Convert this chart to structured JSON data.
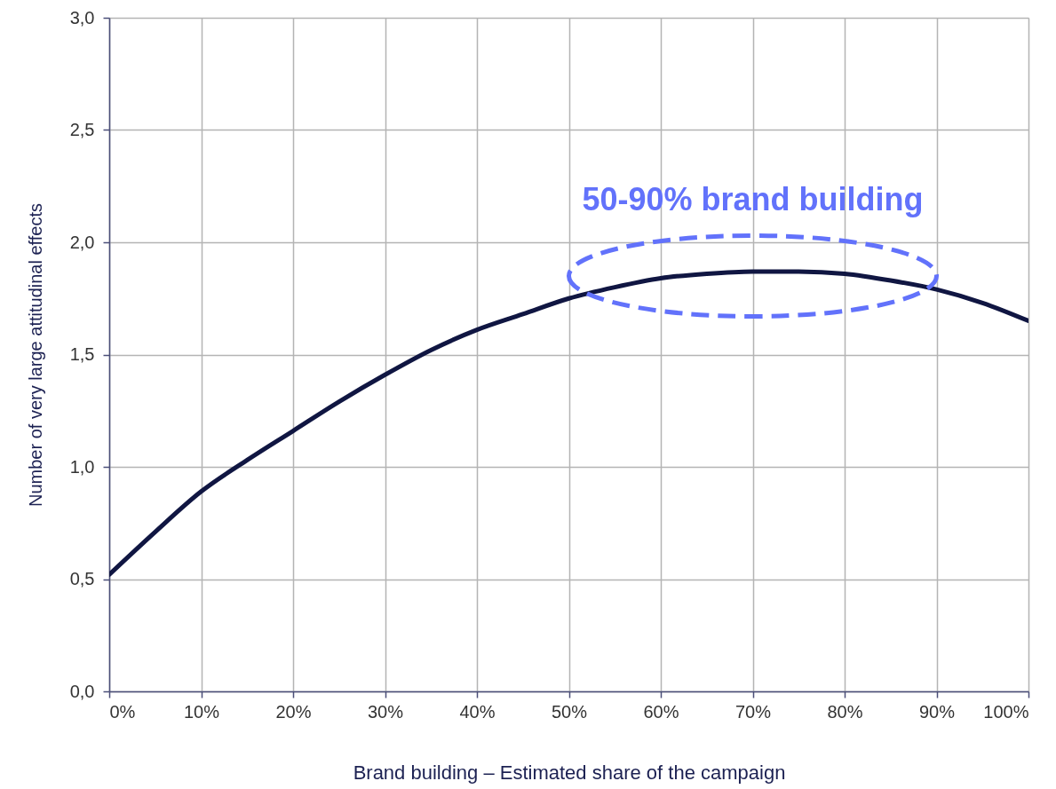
{
  "chart_data": {
    "type": "line",
    "xlabel": "Brand building – Estimated share of the campaign",
    "ylabel": "Number of very large attitudinal effects",
    "x": [
      0,
      5,
      10,
      15,
      20,
      25,
      30,
      35,
      40,
      45,
      50,
      55,
      60,
      65,
      70,
      75,
      80,
      85,
      90,
      95,
      100
    ],
    "series": [
      {
        "color": "#101642",
        "values": [
          0.52,
          0.71,
          0.89,
          1.03,
          1.16,
          1.29,
          1.41,
          1.52,
          1.61,
          1.68,
          1.75,
          1.8,
          1.84,
          1.86,
          1.87,
          1.87,
          1.86,
          1.83,
          1.79,
          1.73,
          1.65
        ]
      }
    ],
    "xlim": [
      0,
      100
    ],
    "ylim": [
      0,
      3
    ],
    "xticks": [
      {
        "value": 0,
        "label": "0%"
      },
      {
        "value": 10,
        "label": "10%"
      },
      {
        "value": 20,
        "label": "20%"
      },
      {
        "value": 30,
        "label": "30%"
      },
      {
        "value": 40,
        "label": "40%"
      },
      {
        "value": 50,
        "label": "50%"
      },
      {
        "value": 60,
        "label": "60%"
      },
      {
        "value": 70,
        "label": "70%"
      },
      {
        "value": 80,
        "label": "80%"
      },
      {
        "value": 90,
        "label": "90%"
      },
      {
        "value": 100,
        "label": "100%"
      }
    ],
    "yticks": [
      {
        "value": 0,
        "label": "0,0"
      },
      {
        "value": 0.5,
        "label": "0,5"
      },
      {
        "value": 1,
        "label": "1,0"
      },
      {
        "value": 1.5,
        "label": "1,5"
      },
      {
        "value": 2,
        "label": "2,0"
      },
      {
        "value": 2.5,
        "label": "2,5"
      },
      {
        "value": 3,
        "label": "3,0"
      }
    ],
    "grid": true,
    "line_style": "solid",
    "annotations": [
      {
        "text": "50-90% brand building",
        "x": 70,
        "y": 1.85
      }
    ]
  }
}
